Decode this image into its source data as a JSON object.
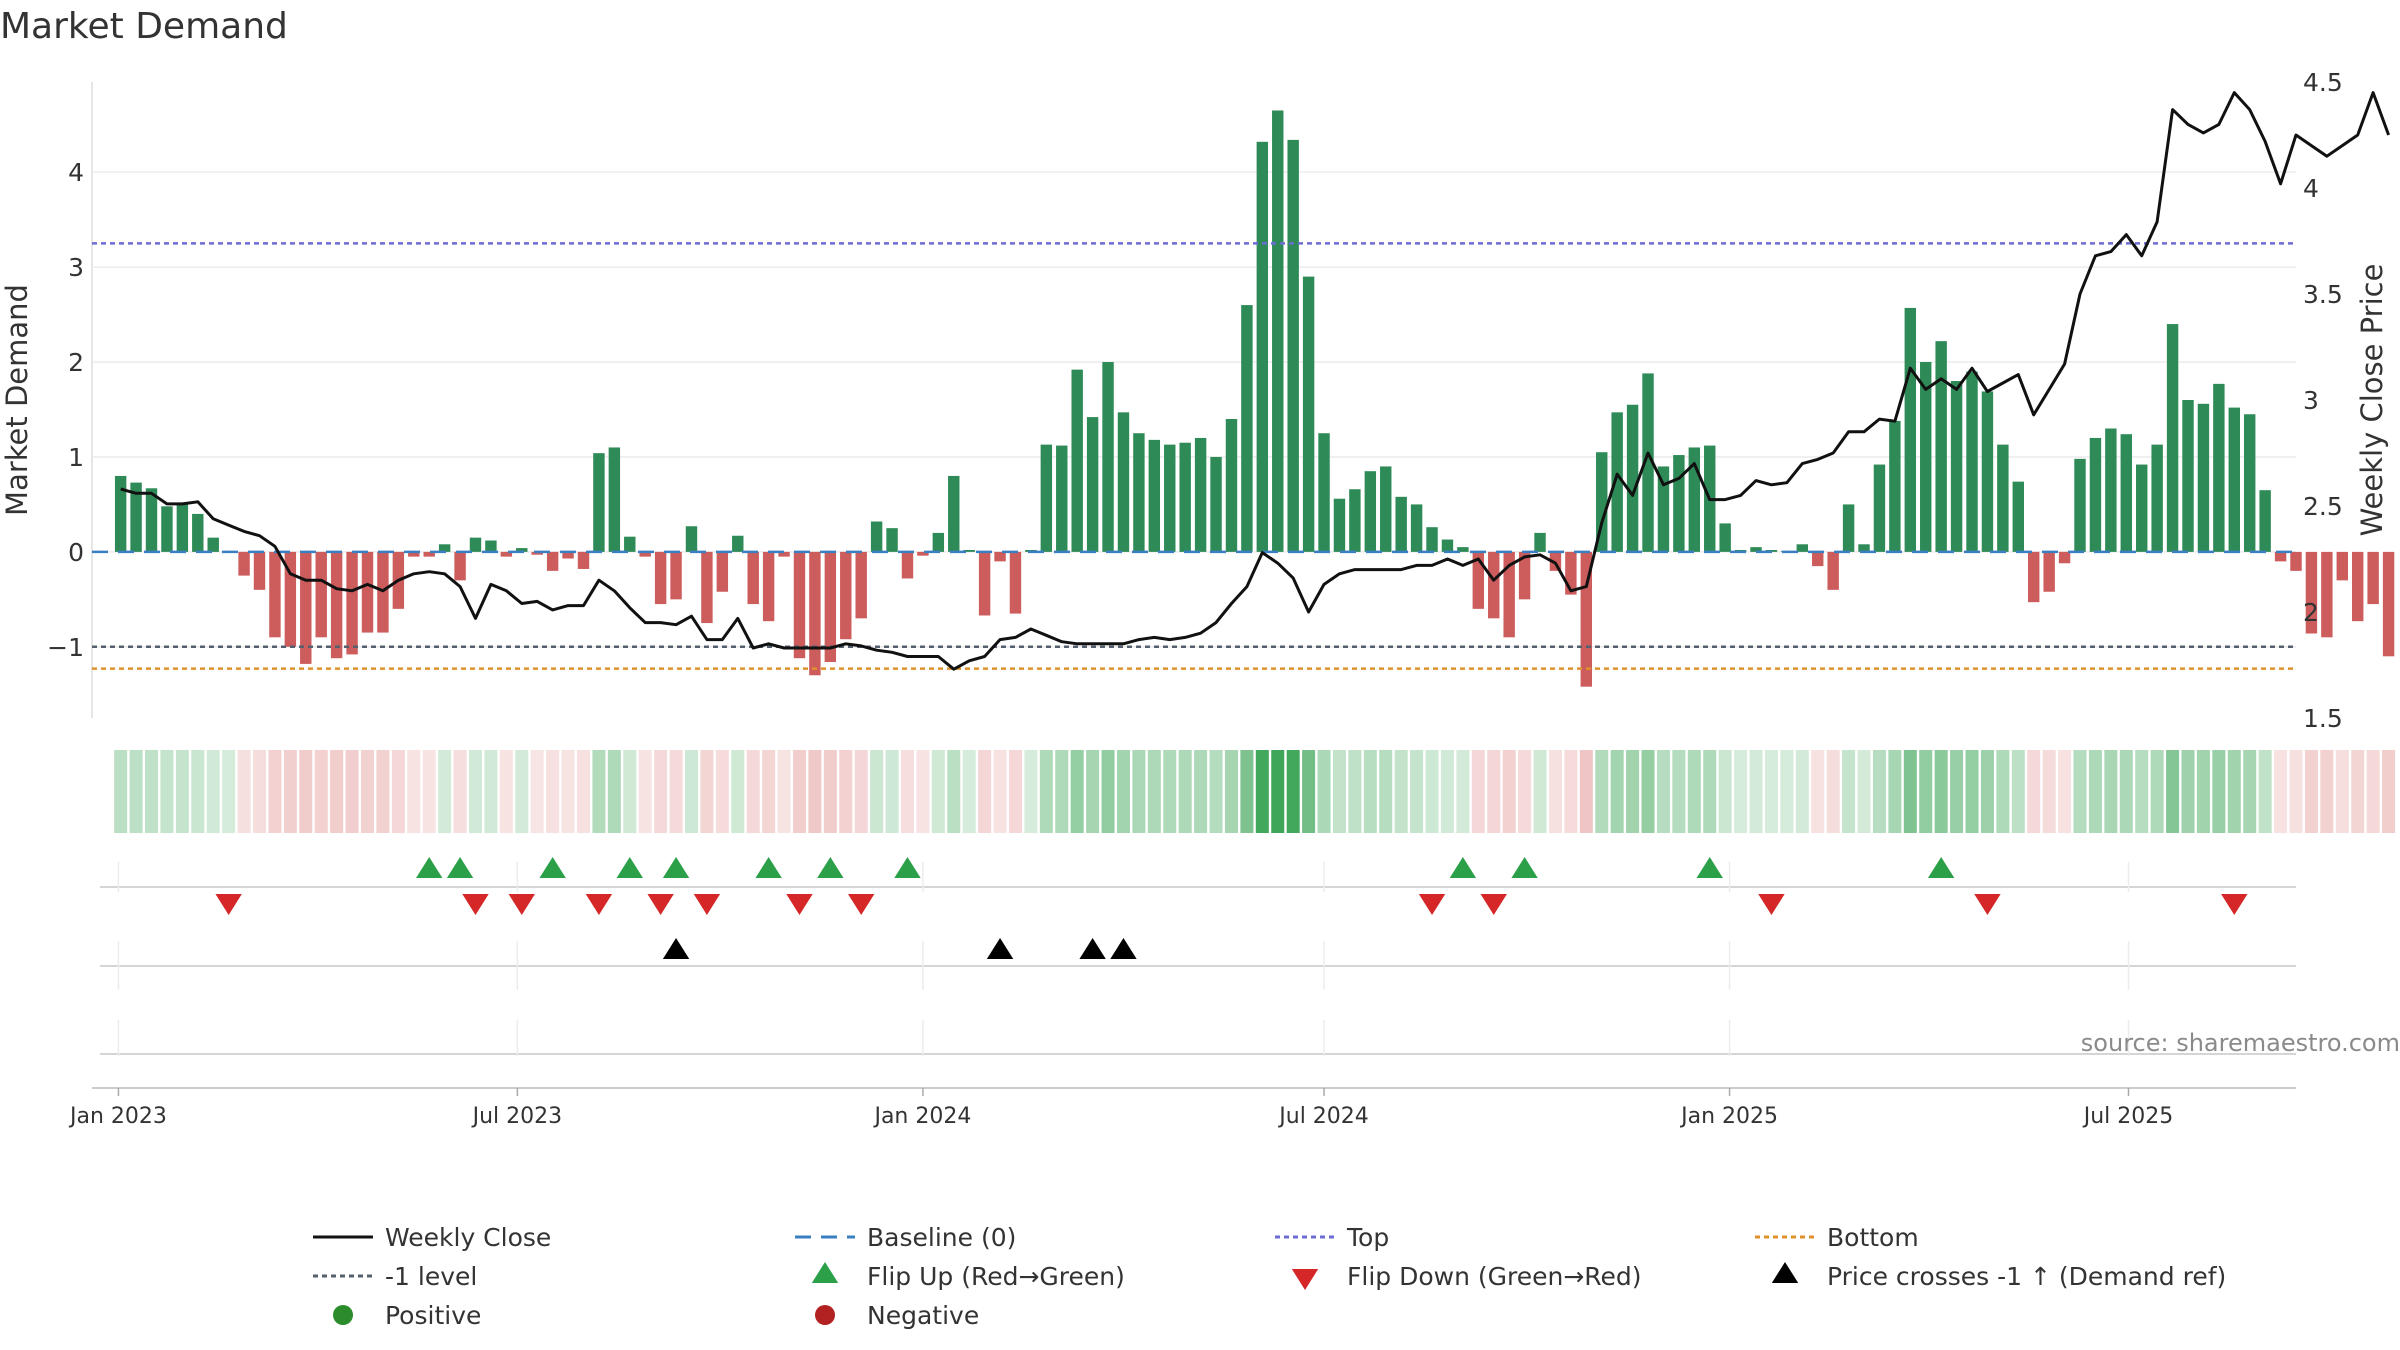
{
  "chart_data": {
    "type": "bar",
    "title": "Market Demand",
    "ylabel_left": "Market Demand",
    "ylabel_right": "Weekly Close Price",
    "source": "source: sharemaestro.com",
    "x_start": "2023-01-02",
    "x_range": [
      "2022-12-20",
      "2025-09-15"
    ],
    "ylim_left": [
      -1.75,
      4.95
    ],
    "ylim_right": [
      1.5,
      4.5
    ],
    "yticks_left": [
      -1,
      0,
      1,
      2,
      3,
      4
    ],
    "yticks_left_labels": [
      "−1",
      "0",
      "1",
      "2",
      "3",
      "4"
    ],
    "yticks_right": [
      1.5,
      2,
      2.5,
      3,
      3.5,
      4,
      4.5
    ],
    "yticks_right_labels": [
      "1.5",
      "2",
      "2.5",
      "3",
      "3.5",
      "4",
      "4.5"
    ],
    "xticks": [
      {
        "label": "Jan 2023",
        "date": "2023-01-01"
      },
      {
        "label": "Jul 2023",
        "date": "2023-07-01"
      },
      {
        "label": "Jan 2024",
        "date": "2024-01-01"
      },
      {
        "label": "Jul 2024",
        "date": "2024-07-01"
      },
      {
        "label": "Jan 2025",
        "date": "2025-01-01"
      },
      {
        "label": "Jul 2025",
        "date": "2025-07-01"
      }
    ],
    "reference_lines": {
      "top": 3.25,
      "bottom": -1.23,
      "minus_one": -1,
      "baseline": 0
    },
    "demand": [
      0.8,
      0.73,
      0.67,
      0.48,
      0.5,
      0.4,
      0.15,
      0,
      -0.25,
      -0.4,
      -0.9,
      -1.0,
      -1.18,
      -0.9,
      -1.12,
      -1.08,
      -0.85,
      -0.85,
      -0.6,
      -0.05,
      -0.05,
      0.08,
      -0.3,
      0.15,
      0.12,
      -0.05,
      0.04,
      -0.03,
      -0.2,
      -0.07,
      -0.18,
      1.04,
      1.1,
      0.16,
      -0.05,
      -0.55,
      -0.5,
      0.27,
      -0.75,
      -0.42,
      0.17,
      -0.55,
      -0.73,
      -0.05,
      -1.12,
      -1.3,
      -1.16,
      -0.92,
      -0.7,
      0.32,
      0.25,
      -0.28,
      -0.04,
      0.2,
      0.8,
      0.02,
      -0.67,
      -0.1,
      -0.65,
      0.02,
      1.13,
      1.12,
      1.92,
      1.42,
      2.0,
      1.47,
      1.25,
      1.18,
      1.13,
      1.15,
      1.2,
      1.0,
      1.4,
      2.6,
      4.32,
      4.65,
      4.34,
      2.9,
      1.25,
      0.56,
      0.66,
      0.85,
      0.9,
      0.58,
      0.5,
      0.26,
      0.13,
      0.05,
      -0.6,
      -0.7,
      -0.9,
      -0.5,
      0.2,
      -0.2,
      -0.45,
      -1.42,
      1.05,
      1.47,
      1.55,
      1.88,
      0.9,
      1.02,
      1.1,
      1.12,
      0.3,
      0.02,
      0.05,
      0.02,
      0.01,
      0.08,
      -0.15,
      -0.4,
      0.5,
      0.08,
      0.92,
      1.38,
      2.57,
      2.0,
      2.22,
      1.8,
      1.9,
      1.69,
      1.13,
      0.74,
      -0.53,
      -0.42,
      -0.12,
      0.98,
      1.2,
      1.3,
      1.24,
      0.92,
      1.13,
      2.4,
      1.6,
      1.56,
      1.77,
      1.52,
      1.45,
      0.65,
      -0.1,
      -0.2,
      -0.86,
      -0.9,
      -0.3,
      -0.73,
      -0.55,
      -1.1
    ],
    "price": [
      2.58,
      2.56,
      2.56,
      2.51,
      2.51,
      2.52,
      2.44,
      2.41,
      2.38,
      2.36,
      2.31,
      2.18,
      2.15,
      2.15,
      2.11,
      2.1,
      2.13,
      2.1,
      2.15,
      2.18,
      2.19,
      2.18,
      2.12,
      1.97,
      2.13,
      2.1,
      2.04,
      2.05,
      2.01,
      2.03,
      2.03,
      2.15,
      2.1,
      2.02,
      1.95,
      1.95,
      1.94,
      1.98,
      1.87,
      1.87,
      1.97,
      1.83,
      1.85,
      1.83,
      1.83,
      1.83,
      1.83,
      1.85,
      1.84,
      1.82,
      1.81,
      1.79,
      1.79,
      1.79,
      1.73,
      1.77,
      1.79,
      1.87,
      1.88,
      1.92,
      1.89,
      1.86,
      1.85,
      1.85,
      1.85,
      1.85,
      1.87,
      1.88,
      1.87,
      1.88,
      1.9,
      1.95,
      2.04,
      2.12,
      2.28,
      2.23,
      2.16,
      2.0,
      2.13,
      2.18,
      2.2,
      2.2,
      2.2,
      2.2,
      2.22,
      2.22,
      2.25,
      2.22,
      2.25,
      2.15,
      2.22,
      2.26,
      2.27,
      2.23,
      2.1,
      2.12,
      2.42,
      2.65,
      2.55,
      2.75,
      2.6,
      2.63,
      2.7,
      2.53,
      2.53,
      2.55,
      2.62,
      2.6,
      2.61,
      2.7,
      2.72,
      2.75,
      2.85,
      2.85,
      2.91,
      2.9,
      3.15,
      3.05,
      3.1,
      3.05,
      3.15,
      3.04,
      3.08,
      3.12,
      2.93,
      3.05,
      3.17,
      3.5,
      3.68,
      3.7,
      3.78,
      3.68,
      3.84,
      4.37,
      4.3,
      4.26,
      4.3,
      4.45,
      4.37,
      4.22,
      4.02,
      4.25,
      4.2,
      4.15,
      4.2,
      4.25,
      4.45,
      4.25
    ],
    "flip_up_weeks": [
      20,
      22,
      28,
      33,
      36,
      42,
      46,
      51
    ],
    "flip_down_weeks": [
      7,
      23,
      26,
      31,
      35,
      38,
      44,
      48,
      85,
      89,
      107,
      121,
      137
    ],
    "flip_up_weeks_2024": [
      87,
      91,
      103,
      118
    ],
    "price_cross_weeks": [
      36,
      57,
      63,
      65
    ],
    "legend": [
      {
        "label": "Weekly Close",
        "symbol": "line-solid",
        "color": "#111111"
      },
      {
        "label": "Baseline (0)",
        "symbol": "line-dashed",
        "color": "#3a7fc2"
      },
      {
        "label": "Top",
        "symbol": "line-dotted",
        "color": "#6c6cd4"
      },
      {
        "label": "Bottom",
        "symbol": "line-dotted",
        "color": "#e0902c"
      },
      {
        "label": "-1 level",
        "symbol": "line-dotted",
        "color": "#55606e"
      },
      {
        "label": "Flip Up (Red→Green)",
        "symbol": "triangle-up",
        "color": "#2ca049"
      },
      {
        "label": "Flip Down (Green→Red)",
        "symbol": "triangle-down",
        "color": "#d62728"
      },
      {
        "label": "Price crosses -1 ↑ (Demand ref)",
        "symbol": "triangle-up",
        "color": "#000000"
      },
      {
        "label": "Positive",
        "symbol": "dot",
        "color": "#2a8c2a"
      },
      {
        "label": "Negative",
        "symbol": "dot",
        "color": "#b22222"
      }
    ]
  },
  "colors": {
    "positive_bar": "#2e8b57",
    "negative_bar": "#cd5c5c",
    "heat_positive": "#2e9e4a",
    "heat_negative": "#d97b78",
    "price_line": "#111111"
  }
}
